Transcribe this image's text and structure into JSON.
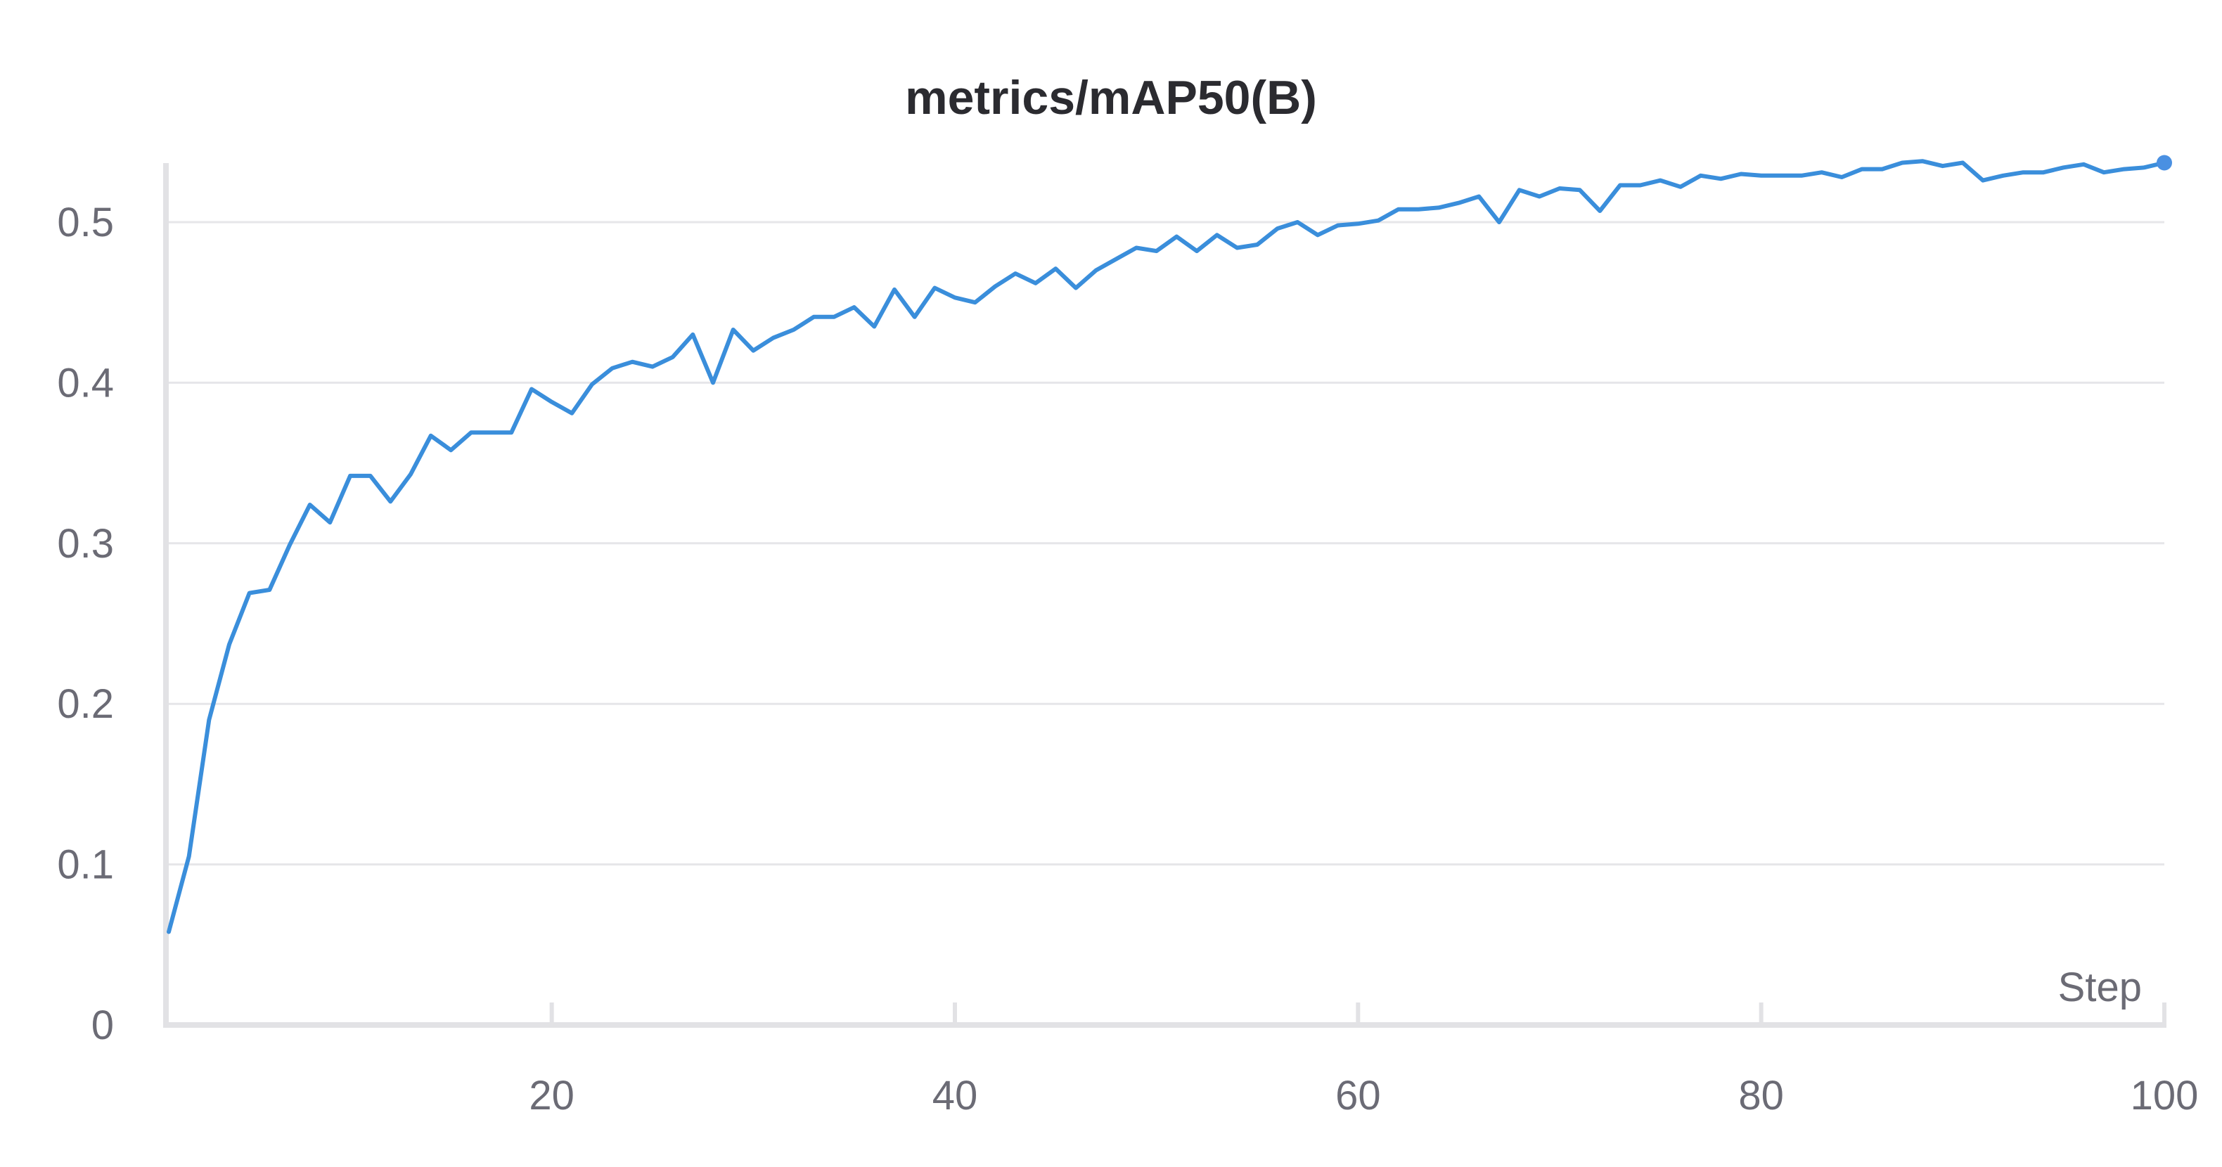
{
  "chart_data": {
    "type": "line",
    "title": "metrics/mAP50(B)",
    "xlabel": "Step",
    "ylabel": "",
    "xlim": [
      1,
      100
    ],
    "ylim": [
      0,
      0.55
    ],
    "grid": true,
    "x_ticks": [
      20,
      40,
      60,
      80,
      100
    ],
    "y_ticks": [
      0,
      0.1,
      0.2,
      0.3,
      0.4,
      0.5
    ],
    "x_tick_labels": [
      "20",
      "40",
      "60",
      "80",
      "100"
    ],
    "y_tick_labels": [
      "0",
      "0.1",
      "0.2",
      "0.3",
      "0.4",
      "0.5"
    ],
    "colors": {
      "series": "#3a8edb",
      "endpoint": "#4a90e2"
    },
    "series": [
      {
        "name": "metrics/mAP50(B)",
        "x": [
          1,
          2,
          3,
          4,
          5,
          6,
          7,
          8,
          9,
          10,
          11,
          12,
          13,
          14,
          15,
          16,
          17,
          18,
          19,
          20,
          21,
          22,
          23,
          24,
          25,
          26,
          27,
          28,
          29,
          30,
          31,
          32,
          33,
          34,
          35,
          36,
          37,
          38,
          39,
          40,
          41,
          42,
          43,
          44,
          45,
          46,
          47,
          48,
          49,
          50,
          51,
          52,
          53,
          54,
          55,
          56,
          57,
          58,
          59,
          60,
          61,
          62,
          63,
          64,
          65,
          66,
          67,
          68,
          69,
          70,
          71,
          72,
          73,
          74,
          75,
          76,
          77,
          78,
          79,
          80,
          81,
          82,
          83,
          84,
          85,
          86,
          87,
          88,
          89,
          90,
          91,
          92,
          93,
          94,
          95,
          96,
          97,
          98,
          99,
          100
        ],
        "values": [
          0.058,
          0.105,
          0.19,
          0.237,
          0.269,
          0.271,
          0.299,
          0.324,
          0.313,
          0.342,
          0.342,
          0.326,
          0.343,
          0.367,
          0.358,
          0.369,
          0.369,
          0.369,
          0.396,
          0.388,
          0.381,
          0.399,
          0.409,
          0.413,
          0.41,
          0.416,
          0.43,
          0.4,
          0.433,
          0.42,
          0.428,
          0.433,
          0.441,
          0.441,
          0.447,
          0.435,
          0.458,
          0.441,
          0.459,
          0.453,
          0.45,
          0.46,
          0.468,
          0.462,
          0.471,
          0.459,
          0.47,
          0.477,
          0.484,
          0.482,
          0.491,
          0.482,
          0.492,
          0.484,
          0.486,
          0.496,
          0.5,
          0.492,
          0.498,
          0.499,
          0.501,
          0.508,
          0.508,
          0.509,
          0.512,
          0.516,
          0.5,
          0.52,
          0.516,
          0.521,
          0.52,
          0.507,
          0.523,
          0.523,
          0.526,
          0.522,
          0.529,
          0.527,
          0.53,
          0.529,
          0.529,
          0.529,
          0.531,
          0.528,
          0.533,
          0.533,
          0.537,
          0.538,
          0.535,
          0.537,
          0.526,
          0.529,
          0.531,
          0.531,
          0.534,
          0.536,
          0.531,
          0.533,
          0.534,
          0.537
        ]
      }
    ]
  }
}
